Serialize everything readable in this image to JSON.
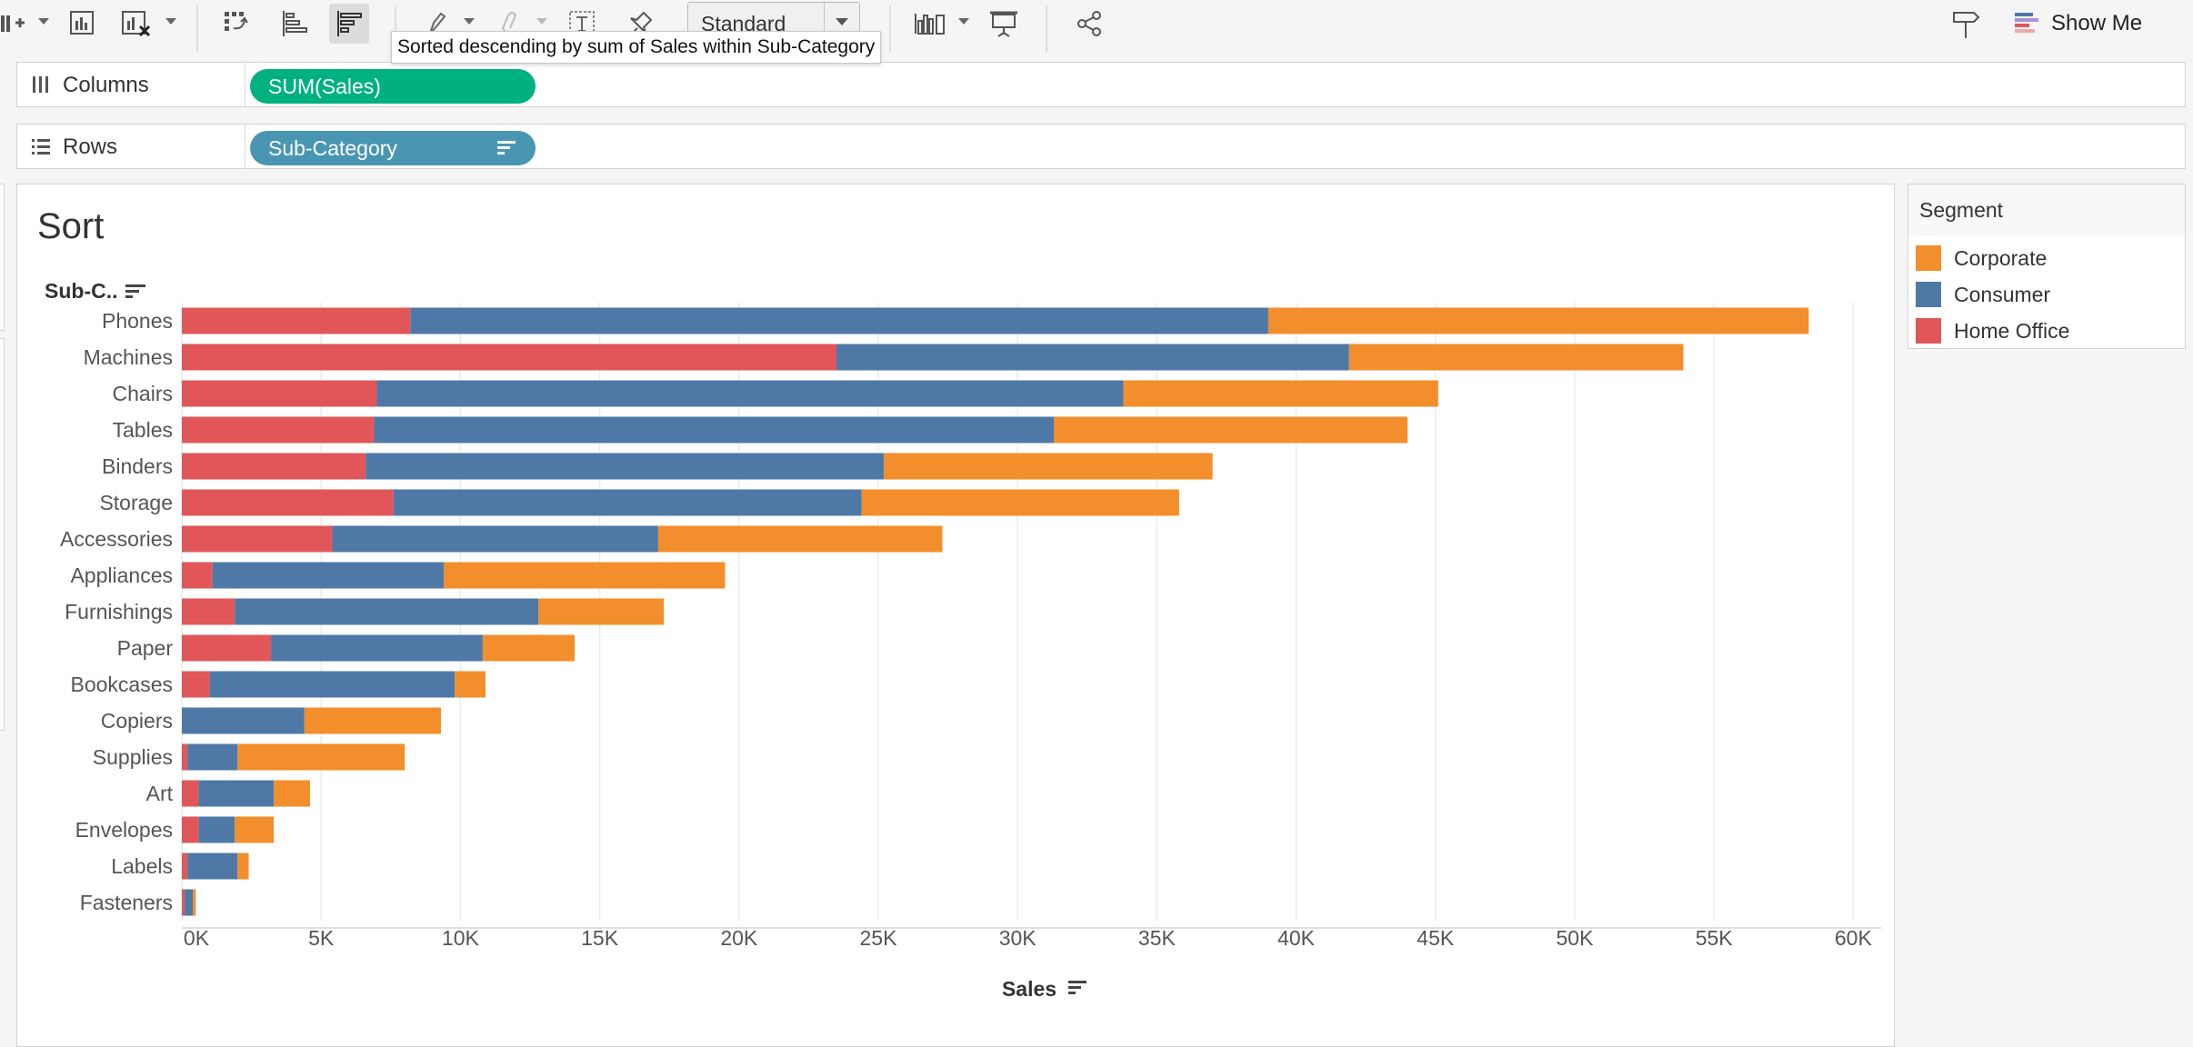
{
  "toolbar": {
    "mark_type_select": "Standard",
    "show_me_label": "Show Me",
    "tooltip": "Sorted descending by sum of Sales within Sub-Category"
  },
  "shelves": {
    "columns_label": "Columns",
    "columns_pill": "SUM(Sales)",
    "rows_label": "Rows",
    "rows_pill": "Sub-Category"
  },
  "sheet": {
    "title": "Sort",
    "row_header": "Sub-C.."
  },
  "legend": {
    "title": "Segment",
    "items": [
      {
        "label": "Corporate",
        "color": "#f28e2b"
      },
      {
        "label": "Consumer",
        "color": "#4e79a7"
      },
      {
        "label": "Home Office",
        "color": "#e15759"
      }
    ]
  },
  "colors": {
    "home_office": "#e15759",
    "consumer": "#4e79a7",
    "corporate": "#f28e2b",
    "pill_green": "#00b180",
    "pill_teal": "#4996b2"
  },
  "chart_data": {
    "type": "bar",
    "orientation": "horizontal",
    "stacked": true,
    "ylabel": "Sub-C..",
    "xlabel": "Sales",
    "xlim": [
      0,
      61000
    ],
    "x_ticks": [
      "0K",
      "5K",
      "10K",
      "15K",
      "20K",
      "25K",
      "30K",
      "35K",
      "40K",
      "45K",
      "50K",
      "55K",
      "60K"
    ],
    "grid": true,
    "legend_position": "right",
    "categories": [
      "Phones",
      "Machines",
      "Chairs",
      "Tables",
      "Binders",
      "Storage",
      "Accessories",
      "Appliances",
      "Furnishings",
      "Paper",
      "Bookcases",
      "Copiers",
      "Supplies",
      "Art",
      "Envelopes",
      "Labels",
      "Fasteners"
    ],
    "series": [
      {
        "name": "Home Office",
        "color": "#e15759",
        "values": [
          8200,
          23500,
          7000,
          6900,
          6600,
          7600,
          5400,
          1100,
          1900,
          3200,
          1000,
          0,
          200,
          600,
          600,
          200,
          100
        ]
      },
      {
        "name": "Consumer",
        "color": "#4e79a7",
        "values": [
          30800,
          18400,
          26800,
          24400,
          18600,
          16800,
          11700,
          8300,
          10900,
          7600,
          8800,
          4400,
          1800,
          2700,
          1300,
          1800,
          300
        ]
      },
      {
        "name": "Corporate",
        "color": "#f28e2b",
        "values": [
          19400,
          12000,
          11300,
          12700,
          11800,
          11400,
          10200,
          10100,
          4500,
          3300,
          1100,
          4900,
          6000,
          1300,
          1400,
          400,
          100
        ]
      }
    ]
  }
}
